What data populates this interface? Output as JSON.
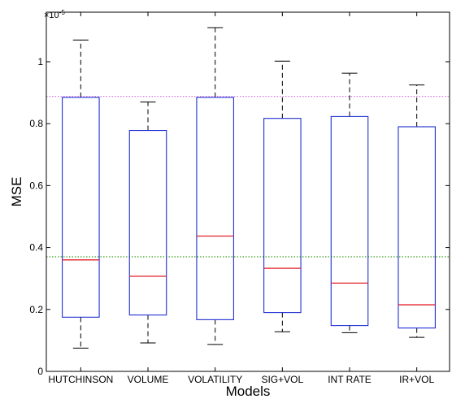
{
  "chart_data": {
    "type": "box",
    "xlabel": "Models",
    "ylabel": "MSE",
    "y_multiplier_label": "×10",
    "y_multiplier_exponent": "-5",
    "ylim": [
      0,
      1.16
    ],
    "yticks": [
      0,
      0.2,
      0.4,
      0.6,
      0.8,
      1
    ],
    "ytick_labels": [
      "0",
      "0.2",
      "0.4",
      "0.6",
      "0.8",
      "1"
    ],
    "categories": [
      "HUTCHINSON",
      "VOLUME",
      "VOLATILITY",
      "SIG+VOL",
      "INT RATE",
      "IR+VOL"
    ],
    "boxes": [
      {
        "whisker_low": 0.075,
        "q1": 0.175,
        "median": 0.36,
        "q3": 0.885,
        "whisker_high": 1.07
      },
      {
        "whisker_low": 0.092,
        "q1": 0.182,
        "median": 0.307,
        "q3": 0.778,
        "whisker_high": 0.87
      },
      {
        "whisker_low": 0.087,
        "q1": 0.167,
        "median": 0.437,
        "q3": 0.885,
        "whisker_high": 1.11
      },
      {
        "whisker_low": 0.128,
        "q1": 0.19,
        "median": 0.333,
        "q3": 0.817,
        "whisker_high": 1.002
      },
      {
        "whisker_low": 0.125,
        "q1": 0.148,
        "median": 0.285,
        "q3": 0.823,
        "whisker_high": 0.963
      },
      {
        "whisker_low": 0.11,
        "q1": 0.14,
        "median": 0.215,
        "q3": 0.79,
        "whisker_high": 0.925
      }
    ],
    "reference_lines": [
      {
        "value": 0.888,
        "color": "#d97ae0",
        "style": "dotted"
      },
      {
        "value": 0.37,
        "color": "#3f9a1f",
        "style": "dotted"
      }
    ],
    "colors": {
      "box": "#1f2fd1",
      "median": "#e3222a",
      "whisker": "#000000",
      "axis": "#000000"
    },
    "grid": false
  }
}
